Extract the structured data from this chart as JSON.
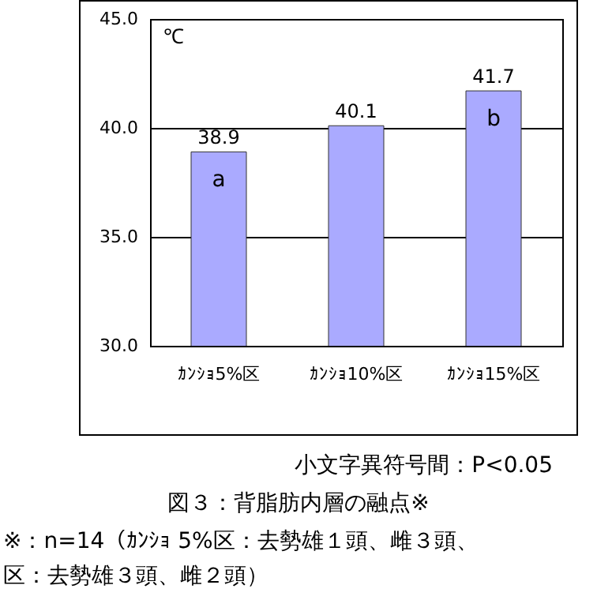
{
  "chart_data": {
    "type": "bar",
    "title": "図３：背脂肪内層の融点※",
    "ylabel": "℃",
    "categories": [
      "ｶﾝｼｮ5%区",
      "ｶﾝｼｮ10%区",
      "ｶﾝｼｮ15%区"
    ],
    "values": [
      38.9,
      40.1,
      41.7
    ],
    "color": "#aaaaff",
    "data_labels": true,
    "ylim": [
      30,
      45
    ],
    "yticks": [
      {
        "value": 30,
        "label": "30.0"
      },
      {
        "value": 35,
        "label": "35.0"
      },
      {
        "value": 40,
        "label": "40.0"
      },
      {
        "value": 45,
        "label": "45.0"
      }
    ],
    "grid": "y",
    "annotations": [
      "a",
      "b",
      "小文字異符号間：P<0.05",
      "※：n=14（ｶﾝｼｮ 5%区：去勢雄１頭、雌３頭、",
      "区：去勢雄３頭、雌２頭）"
    ]
  }
}
